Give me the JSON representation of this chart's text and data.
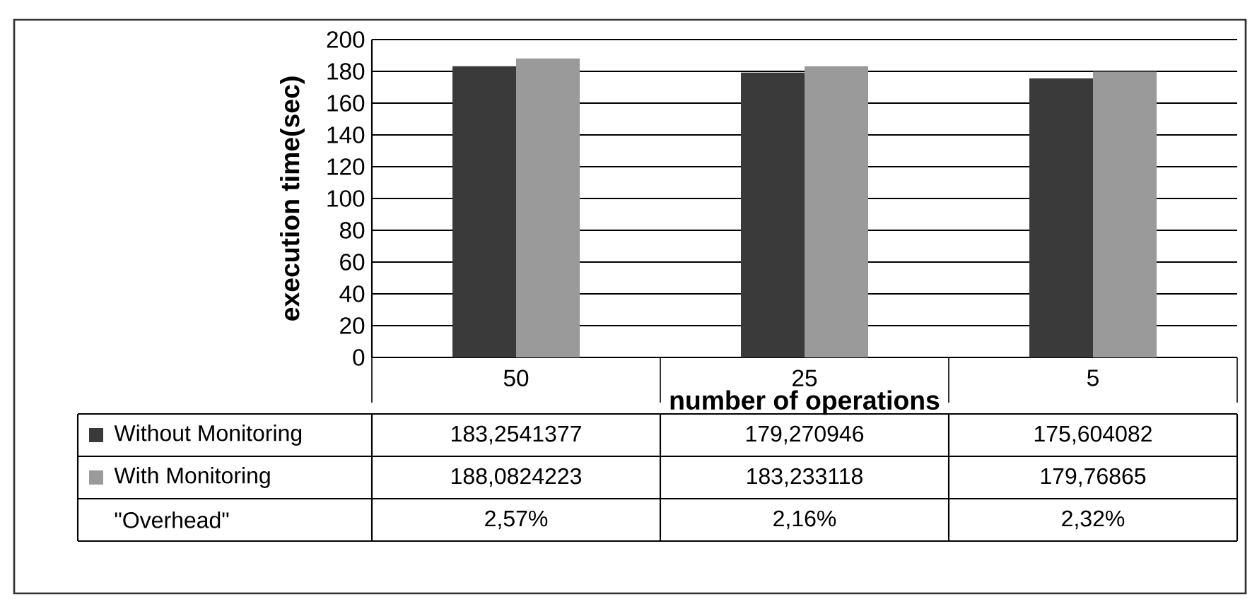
{
  "chart_data": {
    "type": "bar",
    "xlabel": "number of operations",
    "ylabel": "execution time(sec)",
    "categories": [
      "50",
      "25",
      "5"
    ],
    "series": [
      {
        "name": "Without Monitoring",
        "color": "#3a3a3a",
        "values": [
          183.2541377,
          179.270946,
          175.604082
        ],
        "value_labels": [
          "183,2541377",
          "179,270946",
          "175,604082"
        ]
      },
      {
        "name": "With Monitoring",
        "color": "#9a9a9a",
        "values": [
          188.0824223,
          183.233118,
          179.76865
        ],
        "value_labels": [
          "188,0824223",
          "183,233118",
          "179,76865"
        ]
      }
    ],
    "annotations": [
      "\"Overhead\"",
      "2,57%",
      "2,16%",
      "2,32%"
    ],
    "ylim": [
      0,
      200
    ],
    "yticks": [
      0,
      20,
      40,
      60,
      80,
      100,
      120,
      140,
      160,
      180,
      200
    ],
    "grid": "y",
    "legend": "bottom"
  }
}
